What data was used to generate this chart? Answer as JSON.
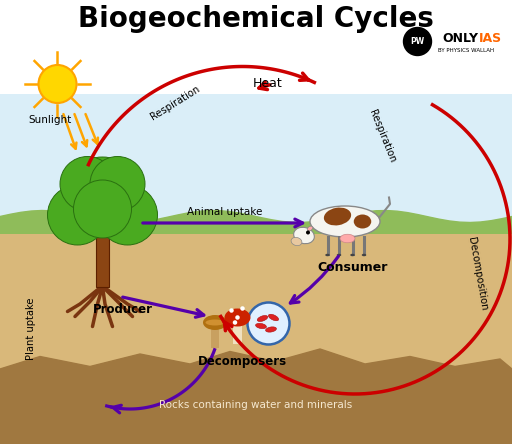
{
  "title": "Biogeochemical Cycles",
  "title_fontsize": 20,
  "bg_sky": "#daeef8",
  "bg_white": "#ffffff",
  "bg_grass": "#8fbc5a",
  "bg_soil": "#d9b87a",
  "bg_rock": "#a07840",
  "arrow_red": "#cc0000",
  "arrow_purple": "#5500aa",
  "sun_yellow": "#FFD700",
  "sun_orange": "#FFA500",
  "tree_trunk": "#8B4513",
  "tree_leaves": "#4aaa20",
  "tree_outline": "#2a7010",
  "root_color": "#7a3510",
  "cow_white": "#f5f5f0",
  "cow_brown": "#8B4513",
  "cow_pink": "#ffaaaa",
  "labels": {
    "sunlight": "Sunlight",
    "heat": "Heat",
    "resp_left": "Respiration",
    "resp_right": "Respiration",
    "animal_uptake": "Animal uptake",
    "consumer": "Consumer",
    "decomposition": "Decomposition",
    "decomposers": "Decomposers",
    "producer": "Producer",
    "plant_uptake": "Plant uptake",
    "rocks": "Rocks containing water and minerals"
  }
}
